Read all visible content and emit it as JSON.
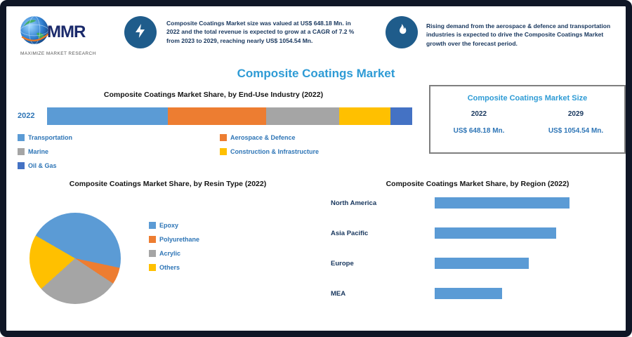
{
  "brand": {
    "logo_text": "MMR",
    "tagline": "MAXIMIZE MARKET RESEARCH"
  },
  "header": {
    "left_note": "Composite Coatings Market size was valued at US$ 648.18 Mn. in 2022 and the total revenue is expected to grow at a CAGR of 7.2 % from 2023 to 2029, reaching nearly US$ 1054.54 Mn.",
    "right_note": "Rising demand from the aerospace & defence and transportation industries is expected to drive the Composite Coatings Market growth over the forecast period."
  },
  "page_title": "Composite Coatings Market",
  "colors": {
    "accent_title": "#2e9bd5",
    "legend_text": "#2e75b6",
    "dark_text": "#17365d",
    "badge_bg": "#1f5c8b"
  },
  "market_size_box": {
    "title": "Composite Coatings Market Size",
    "columns": [
      {
        "year": "2022",
        "value": "US$ 648.18 Mn."
      },
      {
        "year": "2029",
        "value": "US$ 1054.54 Mn."
      }
    ]
  },
  "chart_data": [
    {
      "type": "bar",
      "variant": "stacked-horizontal",
      "title": "Composite Coatings Market Share, by End-Use Industry (2022)",
      "categories": [
        "2022"
      ],
      "series": [
        {
          "name": "Transportation",
          "color": "#5b9bd5",
          "values": [
            33
          ]
        },
        {
          "name": "Aerospace & Defence",
          "color": "#ed7d31",
          "values": [
            27
          ]
        },
        {
          "name": "Marine",
          "color": "#a5a5a5",
          "values": [
            20
          ]
        },
        {
          "name": "Construction & Infrastructure",
          "color": "#ffc000",
          "values": [
            14
          ]
        },
        {
          "name": "Oil & Gas",
          "color": "#4472c4",
          "values": [
            6
          ]
        }
      ],
      "xlim": [
        0,
        100
      ],
      "legend_position": "bottom"
    },
    {
      "type": "pie",
      "title": "Composite Coatings Market Share, by Resin Type (2022)",
      "labels": [
        "Epoxy",
        "Polyurethane",
        "Acrylic",
        "Others"
      ],
      "values": [
        45,
        6,
        29,
        20
      ],
      "colors": [
        "#5b9bd5",
        "#ed7d31",
        "#a5a5a5",
        "#ffc000"
      ],
      "start_angle": -60,
      "legend_position": "right"
    },
    {
      "type": "bar",
      "variant": "horizontal",
      "title": "Composite Coatings Market Share, by Region (2022)",
      "categories": [
        "North America",
        "Asia Pacific",
        "Europe",
        "MEA"
      ],
      "values": [
        40,
        36,
        28,
        20
      ],
      "xlim": [
        0,
        50
      ],
      "bar_color": "#5b9bd5"
    }
  ]
}
